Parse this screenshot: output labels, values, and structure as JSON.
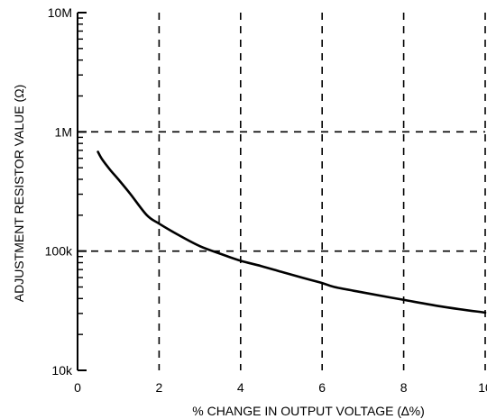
{
  "chart_data": {
    "type": "line",
    "title": "",
    "xlabel": "% CHANGE IN OUTPUT VOLTAGE (∆%)",
    "ylabel": "ADJUSTMENT RESISTOR VALUE (Ω)",
    "xlim": [
      0,
      10
    ],
    "ylim": [
      10000,
      10000000
    ],
    "y_scale": "log",
    "x_ticks": [
      0,
      2,
      4,
      6,
      8,
      10
    ],
    "x_tick_labels": [
      "0",
      "2",
      "4",
      "6",
      "8",
      "10"
    ],
    "y_ticks": [
      10000,
      100000,
      1000000,
      10000000
    ],
    "y_tick_labels": [
      "10k",
      "100k",
      "1M",
      "10M"
    ],
    "grid": true,
    "series": [
      {
        "name": "",
        "color": "#000000",
        "x": [
          0.5,
          0.6,
          0.8,
          1.0,
          1.3,
          1.7,
          2.0,
          2.5,
          3.0,
          3.5,
          4.0,
          4.5,
          5.0,
          5.5,
          6.0,
          6.3,
          7.0,
          8.0,
          9.0,
          10.0
        ],
        "y": [
          680000,
          590000,
          480000,
          400000,
          300000,
          200000,
          170000,
          135000,
          110000,
          95000,
          83000,
          75000,
          67000,
          60000,
          54000,
          50000,
          45000,
          39000,
          34000,
          30500
        ]
      }
    ]
  }
}
